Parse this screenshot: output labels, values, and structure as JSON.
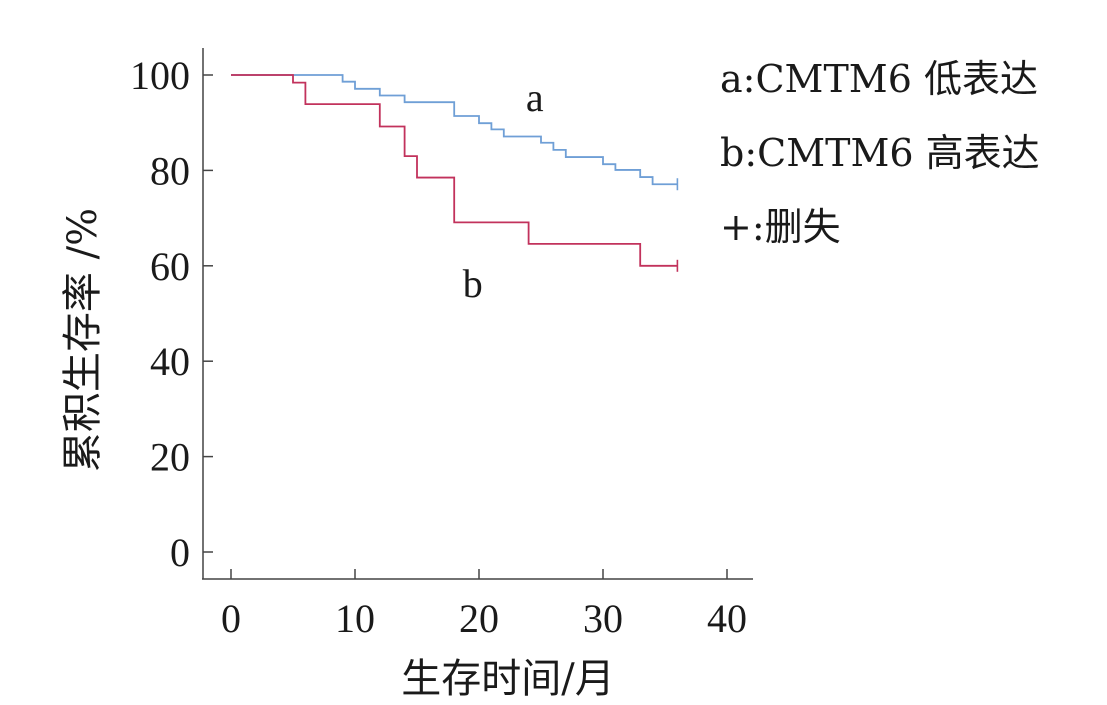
{
  "chart_data": {
    "type": "line",
    "subtype": "kaplan-meier step",
    "xlabel": "生存时间/月",
    "ylabel": "累积生存率 /%",
    "xlim": [
      0,
      40
    ],
    "ylim": [
      0,
      100
    ],
    "xticks": [
      0,
      10,
      20,
      30,
      40
    ],
    "yticks": [
      0,
      20,
      40,
      60,
      80,
      100
    ],
    "grid": false,
    "legend_position": "top-right",
    "legend": [
      "a:CMTM6 低表达",
      "b:CMTM6 高表达",
      "+:删失"
    ],
    "series": [
      {
        "name": "a",
        "label": "a",
        "color": "#6f9fd6",
        "steps": [
          [
            0,
            100
          ],
          [
            9,
            98.6
          ],
          [
            10,
            97.1
          ],
          [
            12,
            95.7
          ],
          [
            14,
            94.3
          ],
          [
            18,
            91.4
          ],
          [
            20,
            89.9
          ],
          [
            21,
            88.6
          ],
          [
            22,
            87.1
          ],
          [
            25,
            85.8
          ],
          [
            26,
            84.3
          ],
          [
            27,
            82.8
          ],
          [
            30,
            81.3
          ],
          [
            31,
            80.1
          ],
          [
            33,
            78.6
          ],
          [
            34,
            77.1
          ]
        ],
        "end": 36,
        "censored": [
          36
        ],
        "label_at": [
          24.5,
          95
        ]
      },
      {
        "name": "b",
        "label": "b",
        "color": "#c2325c",
        "steps": [
          [
            0,
            100
          ],
          [
            5,
            98.4
          ],
          [
            6,
            93.9
          ],
          [
            12,
            89.2
          ],
          [
            14,
            83.0
          ],
          [
            15,
            78.5
          ],
          [
            18,
            69.1
          ],
          [
            24,
            64.6
          ],
          [
            33,
            60.0
          ]
        ],
        "end": 36,
        "censored": [
          36
        ],
        "label_at": [
          19.5,
          56
        ]
      }
    ]
  }
}
